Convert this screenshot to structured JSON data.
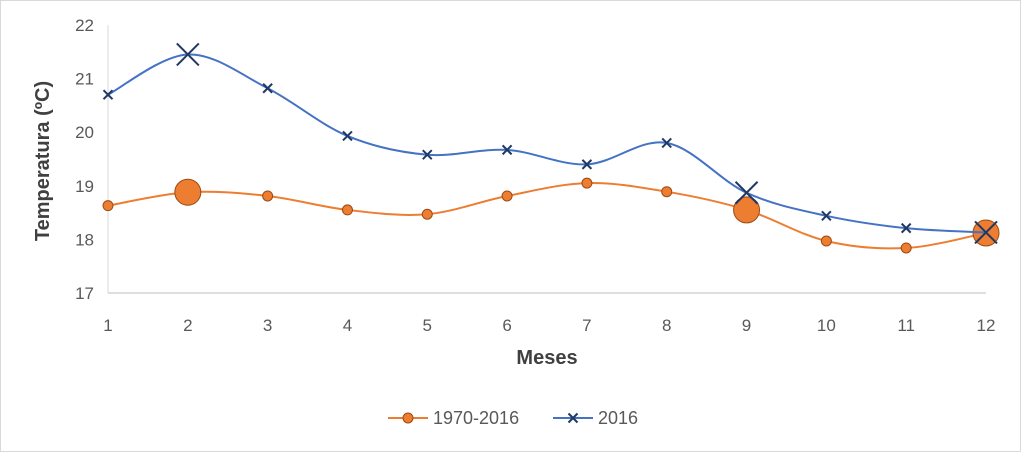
{
  "chart_data": {
    "type": "line",
    "title": "",
    "xlabel": "Meses",
    "ylabel": "Temperatura (ºC)",
    "x": [
      1,
      2,
      3,
      4,
      5,
      6,
      7,
      8,
      9,
      10,
      11,
      12
    ],
    "ylim": [
      17,
      22
    ],
    "yticks": [
      17,
      18,
      19,
      20,
      21,
      22
    ],
    "grid": false,
    "smooth": true,
    "legend_position": "bottom",
    "series": [
      {
        "name": "1970-2016",
        "color": "#ED7D31",
        "marker": "circle",
        "values": [
          18.63,
          18.88,
          18.81,
          18.55,
          18.47,
          18.81,
          19.05,
          18.89,
          18.55,
          17.97,
          17.84,
          18.12
        ],
        "large_markers": [
          2,
          9,
          12
        ]
      },
      {
        "name": "2016",
        "color": "#4472C4",
        "marker": "x",
        "values": [
          20.7,
          21.45,
          20.82,
          19.93,
          19.58,
          19.67,
          19.4,
          19.8,
          18.87,
          18.44,
          18.21,
          18.13
        ],
        "large_markers": [
          2,
          9,
          12
        ]
      }
    ]
  }
}
